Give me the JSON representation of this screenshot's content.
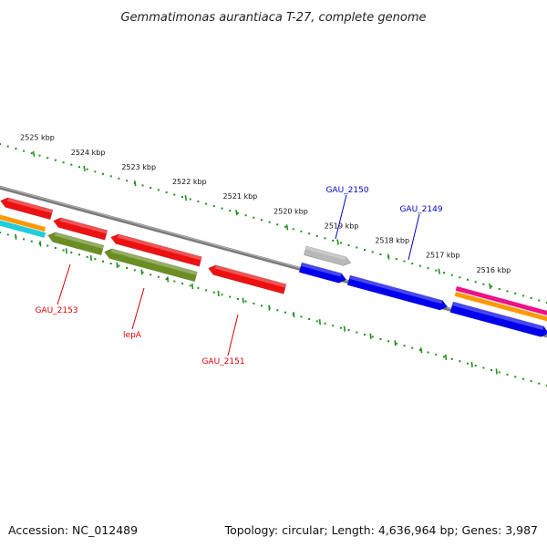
{
  "title": "Gemmatimonas aurantiaca T-27, complete genome",
  "footer": {
    "accession": "Accession: NC_012489",
    "summary": "Topology: circular; Length: 4,636,964 bp; Genes: 3,987"
  },
  "colors": {
    "tick": "#1f8f1f",
    "backbone": "#7a7a7a",
    "label_forward": "#0000cc",
    "label_reverse": "#dd0000",
    "red": "#ee1111",
    "blue": "#0000ee",
    "olive": "#6b8e23",
    "grey": "#b8b8b8",
    "cyan": "#22ccdd",
    "orange": "#ff9900",
    "magenta": "#ee1188"
  },
  "scale": {
    "ticks": [
      {
        "label": "2525 kbp",
        "kbp": 2525
      },
      {
        "label": "2524 kbp",
        "kbp": 2524
      },
      {
        "label": "2523 kbp",
        "kbp": 2523
      },
      {
        "label": "2522 kbp",
        "kbp": 2522
      },
      {
        "label": "2521 kbp",
        "kbp": 2521
      },
      {
        "label": "2520 kbp",
        "kbp": 2520
      },
      {
        "label": "2519 kbp",
        "kbp": 2519
      },
      {
        "label": "2518 kbp",
        "kbp": 2518
      },
      {
        "label": "2517 kbp",
        "kbp": 2517
      },
      {
        "label": "2516 kbp",
        "kbp": 2516
      }
    ]
  },
  "gene_labels": [
    {
      "name": "GAU_2150",
      "strand": "forward"
    },
    {
      "name": "GAU_2149",
      "strand": "forward"
    },
    {
      "name": "GAU_2153",
      "strand": "reverse"
    },
    {
      "name": "lepA",
      "strand": "reverse"
    },
    {
      "name": "GAU_2151",
      "strand": "reverse"
    }
  ]
}
